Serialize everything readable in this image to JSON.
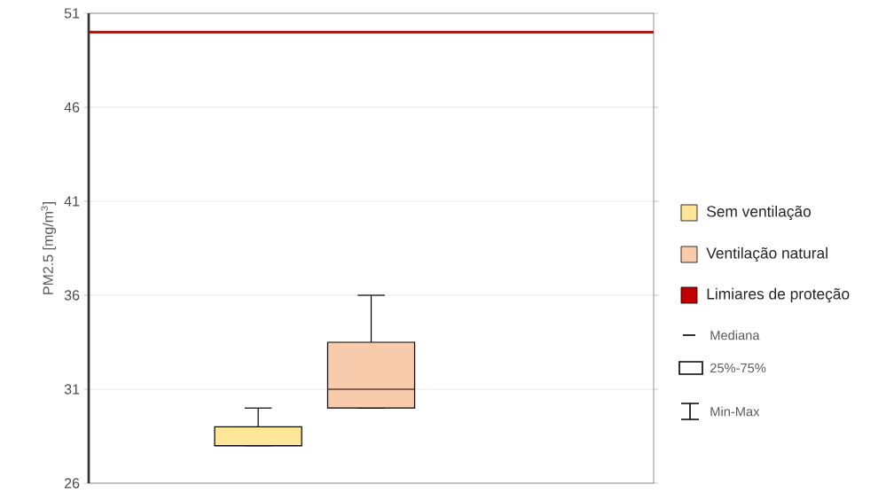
{
  "chart_data": {
    "type": "box",
    "ylabel": "PM2.5 [mg/m$^{3}$]",
    "categories": [
      null,
      null,
      null,
      null,
      null
    ],
    "ylim": [
      26,
      51
    ],
    "yticks": [
      26,
      31,
      36,
      41,
      46,
      51
    ],
    "grid": "y",
    "legend": "right",
    "series": [
      {
        "name": "Sem ventilação",
        "color": "#ffe699",
        "boxes": [
          null,
          {
            "low": 28,
            "q1": 28,
            "median": 28,
            "q3": 29,
            "high": 30
          },
          null,
          null,
          null
        ]
      },
      {
        "name": "Ventilação natural",
        "color": "#f8cbad",
        "boxes": [
          null,
          null,
          {
            "low": 30,
            "q1": 30,
            "median": 31,
            "q3": 33.5,
            "high": 36
          },
          null,
          null
        ]
      }
    ],
    "ref_lines": [
      {
        "axis": "y",
        "value": 50,
        "label": "Limiares de proteção",
        "color": "#c00000"
      }
    ],
    "annotations": [
      "Mediana",
      "25%-75%",
      "Min-Max"
    ]
  }
}
